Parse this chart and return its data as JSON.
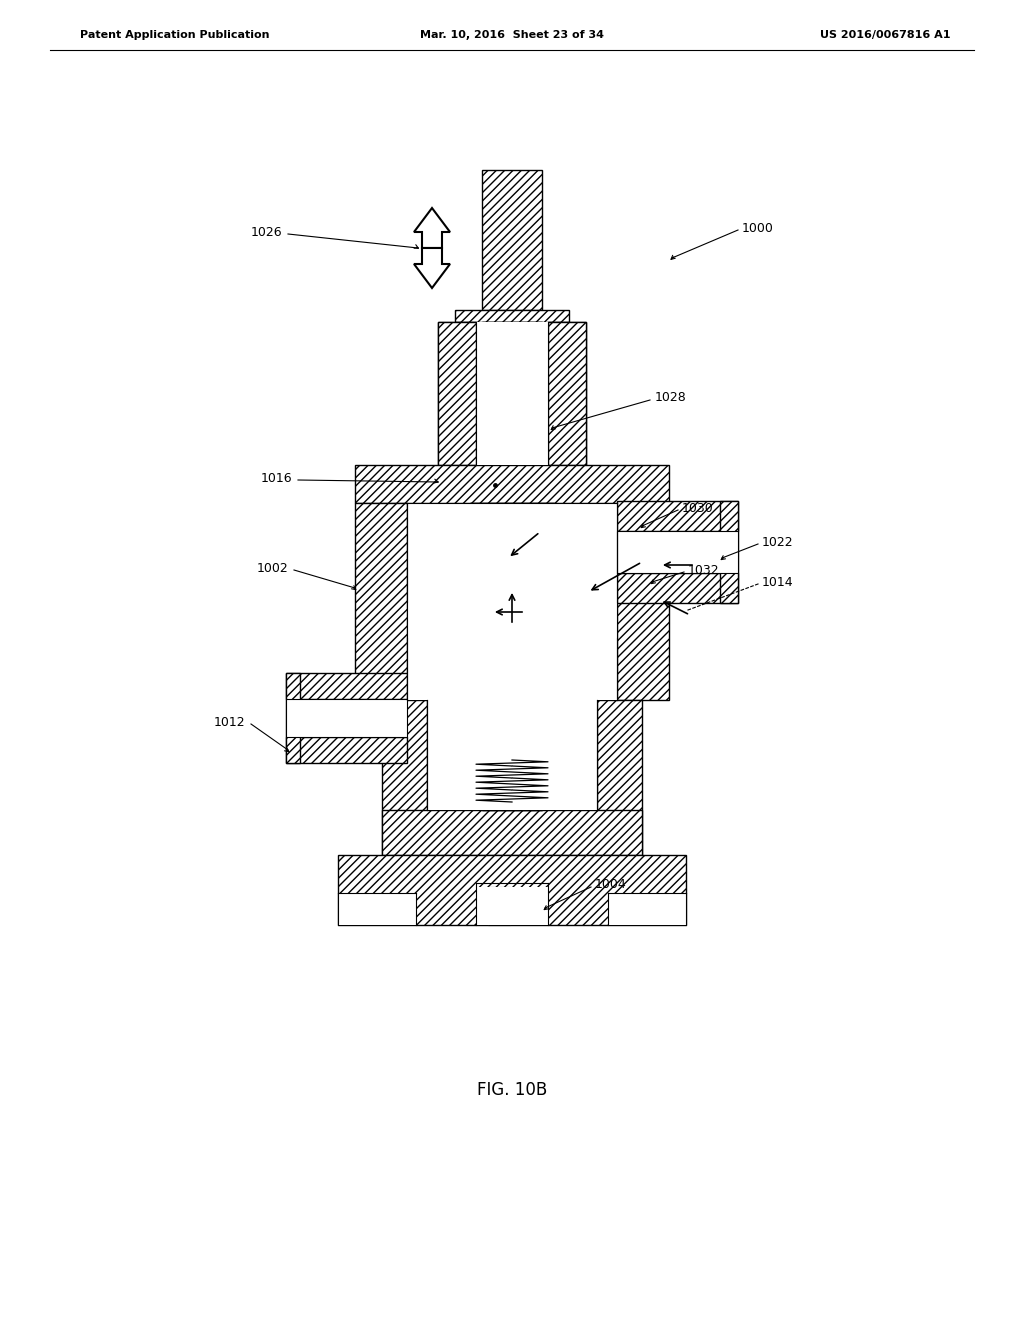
{
  "bg_color": "#ffffff",
  "line_color": "#000000",
  "fig_width": 10.24,
  "fig_height": 13.2,
  "header_left": "Patent Application Publication",
  "header_mid": "Mar. 10, 2016  Sheet 23 of 34",
  "header_right": "US 2016/0067816 A1",
  "caption": "FIG. 10B",
  "label_fontsize": 9,
  "header_fontsize": 8,
  "caption_fontsize": 12
}
